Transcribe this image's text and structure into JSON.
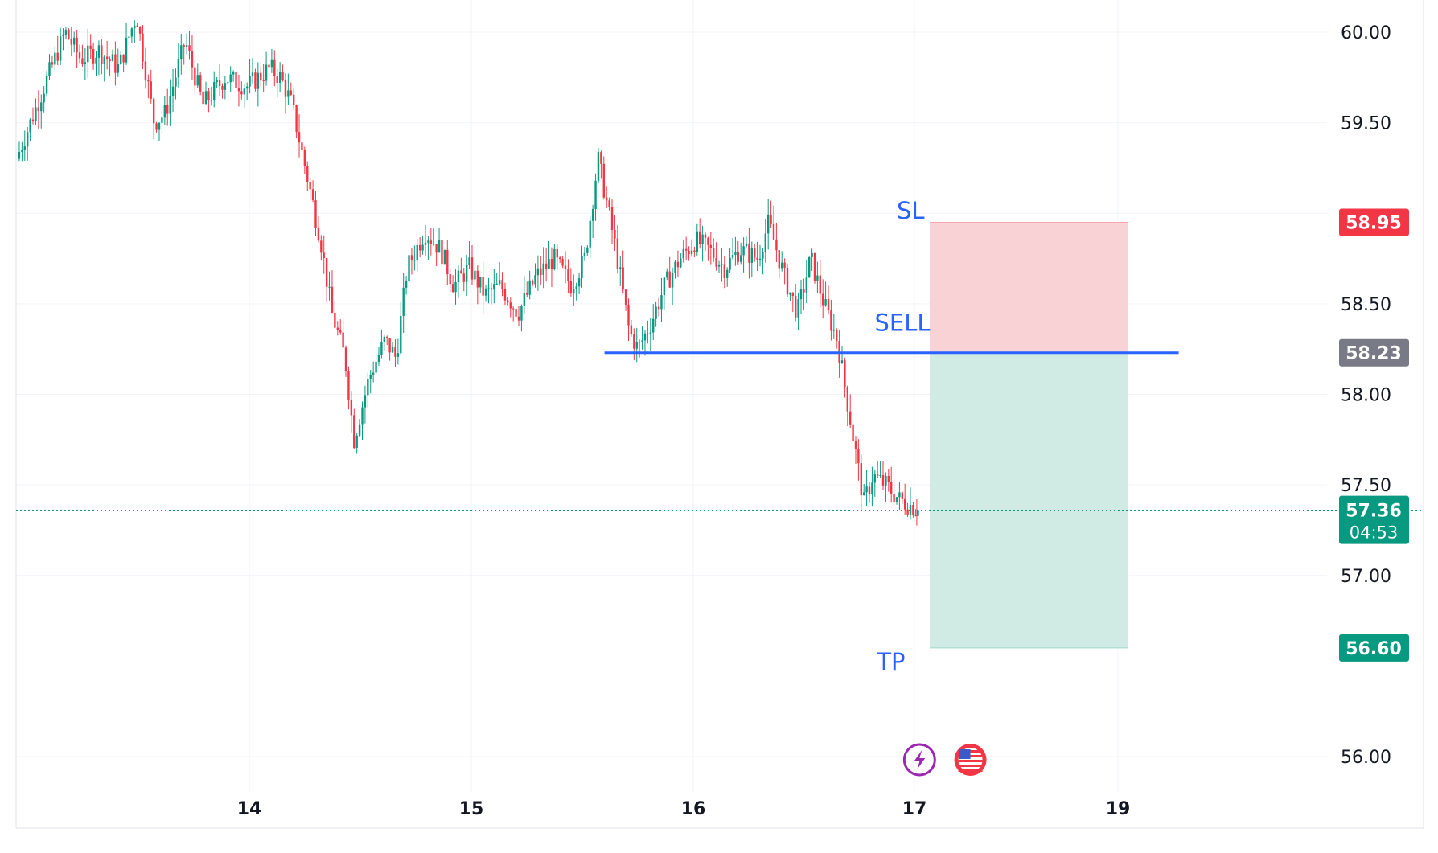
{
  "chart_data": {
    "type": "candlestick",
    "title": "",
    "xlabel": "",
    "ylabel": "",
    "ylim": [
      55.85,
      60.15
    ],
    "grid": true,
    "x_ticks": [
      {
        "label": "14",
        "day": 14
      },
      {
        "label": "15",
        "day": 15
      },
      {
        "label": "16",
        "day": 16
      },
      {
        "label": "17",
        "day": 17
      },
      {
        "label": "19",
        "day": 19
      }
    ],
    "y_ticks": [
      {
        "label": "60.00",
        "value": 60.0
      },
      {
        "label": "59.50",
        "value": 59.5
      },
      {
        "label": "58.50",
        "value": 58.5
      },
      {
        "label": "58.00",
        "value": 58.0
      },
      {
        "label": "57.50",
        "value": 57.5
      },
      {
        "label": "57.00",
        "value": 57.0
      },
      {
        "label": "56.00",
        "value": 56.0
      }
    ],
    "series": [
      {
        "points": [
          [
            12.96,
            59.3
          ],
          [
            13.1,
            59.75
          ],
          [
            13.18,
            60.0
          ],
          [
            13.25,
            59.85
          ],
          [
            13.33,
            59.9
          ],
          [
            13.42,
            59.8
          ],
          [
            13.5,
            60.1
          ],
          [
            13.58,
            59.5
          ],
          [
            13.63,
            59.55
          ],
          [
            13.72,
            59.95
          ],
          [
            13.8,
            59.6
          ],
          [
            13.9,
            59.75
          ],
          [
            14.0,
            59.7
          ],
          [
            14.1,
            59.8
          ],
          [
            14.15,
            59.75
          ],
          [
            14.2,
            59.6
          ],
          [
            14.27,
            59.2
          ],
          [
            14.33,
            58.85
          ],
          [
            14.38,
            58.45
          ],
          [
            14.44,
            58.2
          ],
          [
            14.48,
            57.75
          ],
          [
            14.55,
            58.1
          ],
          [
            14.62,
            58.3
          ],
          [
            14.67,
            58.2
          ],
          [
            14.72,
            58.7
          ],
          [
            14.8,
            58.9
          ],
          [
            14.87,
            58.8
          ],
          [
            14.93,
            58.6
          ],
          [
            15.0,
            58.7
          ],
          [
            15.07,
            58.55
          ],
          [
            15.14,
            58.6
          ],
          [
            15.22,
            58.45
          ],
          [
            15.3,
            58.65
          ],
          [
            15.38,
            58.75
          ],
          [
            15.46,
            58.6
          ],
          [
            15.52,
            58.75
          ],
          [
            15.58,
            59.3
          ],
          [
            15.62,
            59.05
          ],
          [
            15.66,
            58.8
          ],
          [
            15.72,
            58.35
          ],
          [
            15.76,
            58.25
          ],
          [
            15.82,
            58.4
          ],
          [
            15.88,
            58.6
          ],
          [
            15.95,
            58.75
          ],
          [
            16.02,
            58.85
          ],
          [
            16.08,
            58.8
          ],
          [
            16.15,
            58.7
          ],
          [
            16.22,
            58.8
          ],
          [
            16.3,
            58.75
          ],
          [
            16.35,
            58.95
          ],
          [
            16.42,
            58.65
          ],
          [
            16.48,
            58.45
          ],
          [
            16.54,
            58.75
          ],
          [
            16.6,
            58.5
          ],
          [
            16.66,
            58.3
          ],
          [
            16.7,
            58.0
          ],
          [
            16.74,
            57.7
          ],
          [
            16.78,
            57.4
          ],
          [
            16.82,
            57.55
          ],
          [
            16.88,
            57.5
          ],
          [
            16.94,
            57.42
          ],
          [
            17.0,
            57.38
          ],
          [
            17.04,
            57.36
          ]
        ],
        "color_up": "#089981",
        "color_down": "#f23645"
      }
    ],
    "annotations": [
      {
        "label": "SL",
        "color": "#2962ff"
      },
      {
        "label": "SELL",
        "color": "#2962ff"
      },
      {
        "label": "TP",
        "color": "#2962ff"
      }
    ],
    "entry_line": {
      "value": 58.23,
      "start_day": 15.6,
      "end_day": 19.6,
      "color": "#2962ff"
    },
    "position": {
      "entry": 58.23,
      "stop_loss": 58.95,
      "take_profit": 56.6,
      "start_day": 17.15,
      "end_day": 19.1,
      "loss_color": "#f9d2d6",
      "profit_color": "#cfebe4"
    },
    "price_badges": [
      {
        "text": "58.95",
        "value": 58.95,
        "color": "#f23645"
      },
      {
        "text": "58.23",
        "value": 58.23,
        "color": "#787b86"
      },
      {
        "text": "57.36",
        "value": 57.36,
        "color": "#089981",
        "subtext": "04:53"
      },
      {
        "text": "56.60",
        "value": 56.6,
        "color": "#089981"
      }
    ],
    "last_price": {
      "value": 57.36,
      "color": "#089981"
    },
    "event_icons": [
      {
        "name": "lightning-icon",
        "day": 17.05,
        "color": "#9c27b0"
      },
      {
        "name": "us-flag-icon",
        "day": 17.55,
        "color": "#f23645"
      }
    ]
  }
}
